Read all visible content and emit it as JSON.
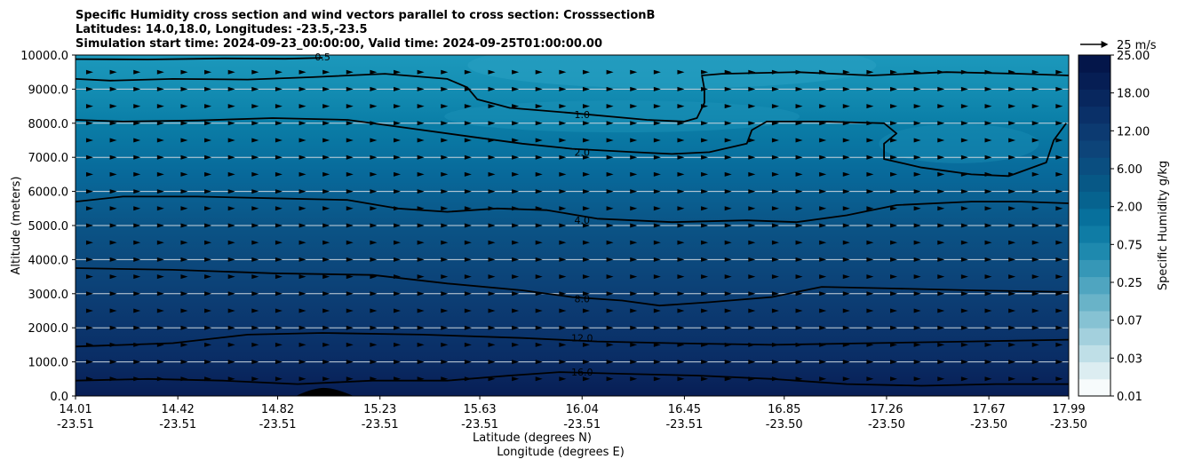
{
  "chart_data": {
    "type": "contour-cross-section",
    "title_lines": [
      "Specific Humidity cross section and wind vectors parallel to cross section: CrosssectionB",
      "Latitudes: 14.0,18.0, Longitudes: -23.5,-23.5",
      "Simulation start time: 2024-09-23_00:00:00, Valid time: 2024-09-25T01:00:00.00"
    ],
    "xlabel_line1": "Latitude (degrees N)",
    "xlabel_line2": "Longitude (degrees E)",
    "ylabel": "Altitude (meters)",
    "xlim": [
      14.01,
      17.99
    ],
    "ylim": [
      0,
      10000
    ],
    "x_ticks": [
      {
        "lat": "14.01",
        "lon": "-23.51",
        "v": 14.01
      },
      {
        "lat": "14.42",
        "lon": "-23.51",
        "v": 14.42
      },
      {
        "lat": "14.82",
        "lon": "-23.51",
        "v": 14.82
      },
      {
        "lat": "15.23",
        "lon": "-23.51",
        "v": 15.23
      },
      {
        "lat": "15.63",
        "lon": "-23.51",
        "v": 15.63
      },
      {
        "lat": "16.04",
        "lon": "-23.51",
        "v": 16.04
      },
      {
        "lat": "16.45",
        "lon": "-23.51",
        "v": 16.45
      },
      {
        "lat": "16.85",
        "lon": "-23.50",
        "v": 16.85
      },
      {
        "lat": "17.26",
        "lon": "-23.50",
        "v": 17.26
      },
      {
        "lat": "17.67",
        "lon": "-23.50",
        "v": 17.67
      },
      {
        "lat": "17.99",
        "lon": "-23.50",
        "v": 17.99
      }
    ],
    "y_ticks": [
      {
        "label": "0.0",
        "v": 0
      },
      {
        "label": "1000.0",
        "v": 1000
      },
      {
        "label": "2000.0",
        "v": 2000
      },
      {
        "label": "3000.0",
        "v": 3000
      },
      {
        "label": "4000.0",
        "v": 4000
      },
      {
        "label": "5000.0",
        "v": 5000
      },
      {
        "label": "6000.0",
        "v": 6000
      },
      {
        "label": "7000.0",
        "v": 7000
      },
      {
        "label": "8000.0",
        "v": 8000
      },
      {
        "label": "9000.0",
        "v": 9000
      },
      {
        "label": "10000.0",
        "v": 10000
      }
    ],
    "grid": "horizontal",
    "colorbar": {
      "label": "Specific Humidity g/kg",
      "ticks": [
        "0.01",
        "0.03",
        "0.07",
        "0.25",
        "0.75",
        "2.00",
        "6.00",
        "12.00",
        "18.00",
        "25.00"
      ],
      "colors": [
        "#f7fbfc",
        "#dcedf1",
        "#bfdfe7",
        "#a3d0dd",
        "#86c2d3",
        "#69b3c8",
        "#4fa5c0",
        "#3697b7",
        "#1e89ae",
        "#0f7ca5",
        "#07709c",
        "#06638f",
        "#075886",
        "#0a4e80",
        "#0d4479",
        "#0c3a71",
        "#0a3068",
        "#08275e",
        "#061e54",
        "#04164a"
      ]
    },
    "wind_reference": {
      "label": "25 m/s"
    },
    "contours": [
      {
        "label": "0.5",
        "label_at": [
          15.0,
          9950
        ],
        "points": [
          [
            14.01,
            9880
          ],
          [
            14.3,
            9870
          ],
          [
            14.6,
            9900
          ],
          [
            14.85,
            9890
          ],
          [
            15.0,
            9920
          ]
        ]
      },
      {
        "label": "1.0",
        "label_at": [
          16.04,
          8250
        ],
        "points": [
          [
            14.01,
            9300
          ],
          [
            14.15,
            9250
          ],
          [
            14.4,
            9300
          ],
          [
            14.7,
            9280
          ],
          [
            14.95,
            9350
          ],
          [
            15.25,
            9450
          ],
          [
            15.5,
            9300
          ],
          [
            15.58,
            9050
          ],
          [
            15.62,
            8700
          ],
          [
            15.75,
            8450
          ],
          [
            16.0,
            8300
          ],
          [
            16.3,
            8100
          ],
          [
            16.45,
            8050
          ],
          [
            16.5,
            8150
          ],
          [
            16.53,
            8600
          ],
          [
            16.53,
            9000
          ],
          [
            16.52,
            9400
          ],
          [
            16.6,
            9450
          ],
          [
            16.9,
            9500
          ],
          [
            17.2,
            9400
          ],
          [
            17.5,
            9500
          ],
          [
            17.8,
            9450
          ],
          [
            17.99,
            9400
          ]
        ]
      },
      {
        "label": "2.0",
        "label_at": [
          16.04,
          7150
        ],
        "points": [
          [
            14.01,
            8100
          ],
          [
            14.2,
            8050
          ],
          [
            14.5,
            8080
          ],
          [
            14.8,
            8150
          ],
          [
            15.1,
            8100
          ],
          [
            15.3,
            7900
          ],
          [
            15.6,
            7600
          ],
          [
            15.8,
            7400
          ],
          [
            16.0,
            7250
          ],
          [
            16.25,
            7150
          ],
          [
            16.4,
            7100
          ],
          [
            16.55,
            7150
          ],
          [
            16.7,
            7400
          ],
          [
            16.72,
            7800
          ],
          [
            16.78,
            8050
          ],
          [
            17.0,
            8050
          ],
          [
            17.25,
            8000
          ],
          [
            17.3,
            7700
          ],
          [
            17.25,
            7400
          ],
          [
            17.25,
            6950
          ],
          [
            17.4,
            6700
          ],
          [
            17.6,
            6500
          ],
          [
            17.75,
            6450
          ],
          [
            17.9,
            6850
          ],
          [
            17.93,
            7500
          ],
          [
            17.98,
            8000
          ]
        ]
      },
      {
        "label": "4.0",
        "label_at": [
          16.04,
          5150
        ],
        "points": [
          [
            14.01,
            5700
          ],
          [
            14.2,
            5850
          ],
          [
            14.5,
            5850
          ],
          [
            14.8,
            5800
          ],
          [
            15.1,
            5750
          ],
          [
            15.3,
            5500
          ],
          [
            15.5,
            5400
          ],
          [
            15.7,
            5500
          ],
          [
            15.9,
            5450
          ],
          [
            16.1,
            5200
          ],
          [
            16.4,
            5100
          ],
          [
            16.7,
            5150
          ],
          [
            16.9,
            5100
          ],
          [
            17.1,
            5300
          ],
          [
            17.3,
            5600
          ],
          [
            17.6,
            5700
          ],
          [
            17.8,
            5700
          ],
          [
            17.99,
            5650
          ]
        ]
      },
      {
        "label": "8.0",
        "label_at": [
          16.04,
          2850
        ],
        "points": [
          [
            14.01,
            3750
          ],
          [
            14.4,
            3700
          ],
          [
            14.8,
            3600
          ],
          [
            15.2,
            3550
          ],
          [
            15.5,
            3300
          ],
          [
            15.8,
            3100
          ],
          [
            16.0,
            2900
          ],
          [
            16.2,
            2800
          ],
          [
            16.35,
            2650
          ],
          [
            16.55,
            2750
          ],
          [
            16.8,
            2900
          ],
          [
            17.0,
            3200
          ],
          [
            17.3,
            3150
          ],
          [
            17.6,
            3100
          ],
          [
            17.99,
            3050
          ]
        ]
      },
      {
        "label": "12.0",
        "label_at": [
          16.04,
          1700
        ],
        "points": [
          [
            14.01,
            1450
          ],
          [
            14.4,
            1550
          ],
          [
            14.7,
            1800
          ],
          [
            15.0,
            1850
          ],
          [
            15.4,
            1800
          ],
          [
            15.8,
            1700
          ],
          [
            16.1,
            1600
          ],
          [
            16.4,
            1550
          ],
          [
            16.8,
            1500
          ],
          [
            17.2,
            1550
          ],
          [
            17.6,
            1600
          ],
          [
            17.99,
            1650
          ]
        ]
      },
      {
        "label": "16.0",
        "label_at": [
          16.04,
          700
        ],
        "points": [
          [
            14.01,
            450
          ],
          [
            14.3,
            500
          ],
          [
            14.6,
            450
          ],
          [
            14.9,
            350
          ],
          [
            15.2,
            450
          ],
          [
            15.5,
            450
          ],
          [
            15.75,
            600
          ],
          [
            15.95,
            700
          ],
          [
            16.2,
            650
          ],
          [
            16.5,
            600
          ],
          [
            16.8,
            500
          ],
          [
            17.1,
            350
          ],
          [
            17.4,
            300
          ],
          [
            17.7,
            350
          ],
          [
            17.99,
            350
          ]
        ]
      }
    ]
  }
}
